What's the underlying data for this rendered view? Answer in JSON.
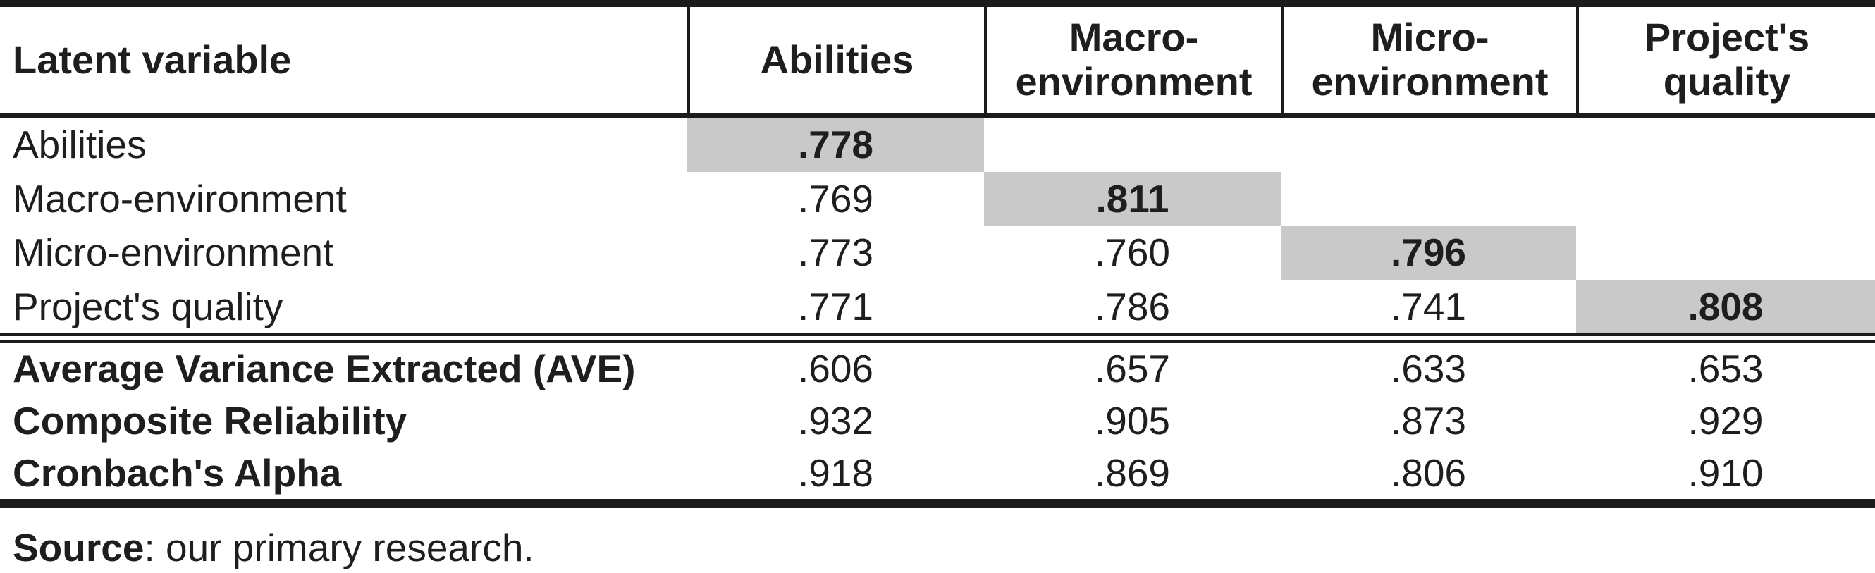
{
  "table": {
    "title_semantic": "Discriminant validity and reliability of latent variables",
    "header": {
      "row_label": "Latent variable",
      "columns": [
        "Abilities",
        "Macro-environment",
        "Micro-environment",
        "Project's quality"
      ]
    },
    "correlation_rows": [
      {
        "label": "Abilities",
        "values": [
          ".778",
          "",
          "",
          ""
        ],
        "diagonal_index": 0
      },
      {
        "label": "Macro-environment",
        "values": [
          ".769",
          ".811",
          "",
          ""
        ],
        "diagonal_index": 1
      },
      {
        "label": "Micro-environment",
        "values": [
          ".773",
          ".760",
          ".796",
          ""
        ],
        "diagonal_index": 2
      },
      {
        "label": "Project's quality",
        "values": [
          ".771",
          ".786",
          ".741",
          ".808"
        ],
        "diagonal_index": 3
      }
    ],
    "reliability_rows": [
      {
        "label": "Average Variance Extracted (AVE)",
        "values": [
          ".606",
          ".657",
          ".633",
          ".653"
        ]
      },
      {
        "label": "Composite Reliability",
        "values": [
          ".932",
          ".905",
          ".873",
          ".929"
        ]
      },
      {
        "label": "Cronbach's Alpha",
        "values": [
          ".918",
          ".869",
          ".806",
          ".910"
        ]
      }
    ]
  },
  "source_note": {
    "label": "Source",
    "text": ": our primary research."
  },
  "colors": {
    "diagonal_highlight": "#c9c9c9",
    "rule_color": "#1b1b1b",
    "text_color": "#1e1e1e",
    "background": "#ffffff"
  }
}
